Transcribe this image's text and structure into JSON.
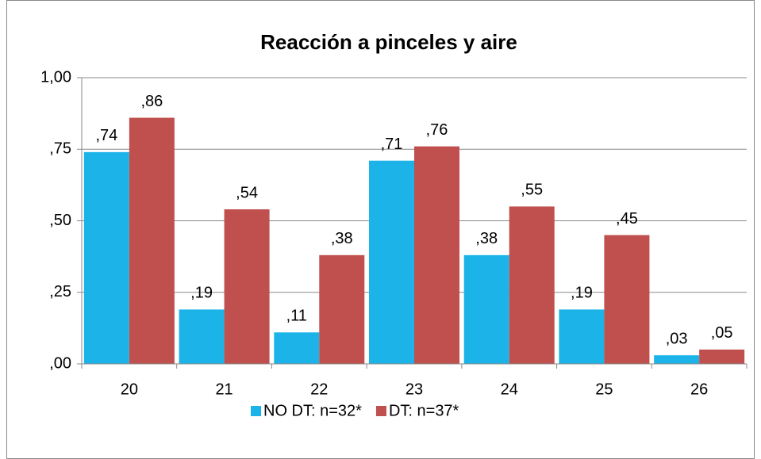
{
  "chart_data": {
    "type": "bar",
    "title": "Reacción a pinceles y aire",
    "categories": [
      "20",
      "21",
      "22",
      "23",
      "24",
      "25",
      "26"
    ],
    "series": [
      {
        "name": "NO DT: n=32*",
        "color": "#1cb4e8",
        "values": [
          0.74,
          0.19,
          0.11,
          0.71,
          0.38,
          0.19,
          0.03
        ],
        "value_labels": [
          ",74",
          ",19",
          ",11",
          ",71",
          ",38",
          ",19",
          ",03"
        ]
      },
      {
        "name": "DT: n=37*",
        "color": "#c0504d",
        "values": [
          0.86,
          0.54,
          0.38,
          0.76,
          0.55,
          0.45,
          0.05
        ],
        "value_labels": [
          ",86",
          ",54",
          ",38",
          ",76",
          ",55",
          ",45",
          ",05"
        ]
      }
    ],
    "ylim": [
      0,
      1
    ],
    "yticks": [
      {
        "value": 0,
        "label": ",00"
      },
      {
        "value": 0.25,
        "label": ",25"
      },
      {
        "value": 0.5,
        "label": ",50"
      },
      {
        "value": 0.75,
        "label": ",75"
      },
      {
        "value": 1,
        "label": "1,00"
      }
    ],
    "grid": true,
    "legend": "bottom"
  }
}
